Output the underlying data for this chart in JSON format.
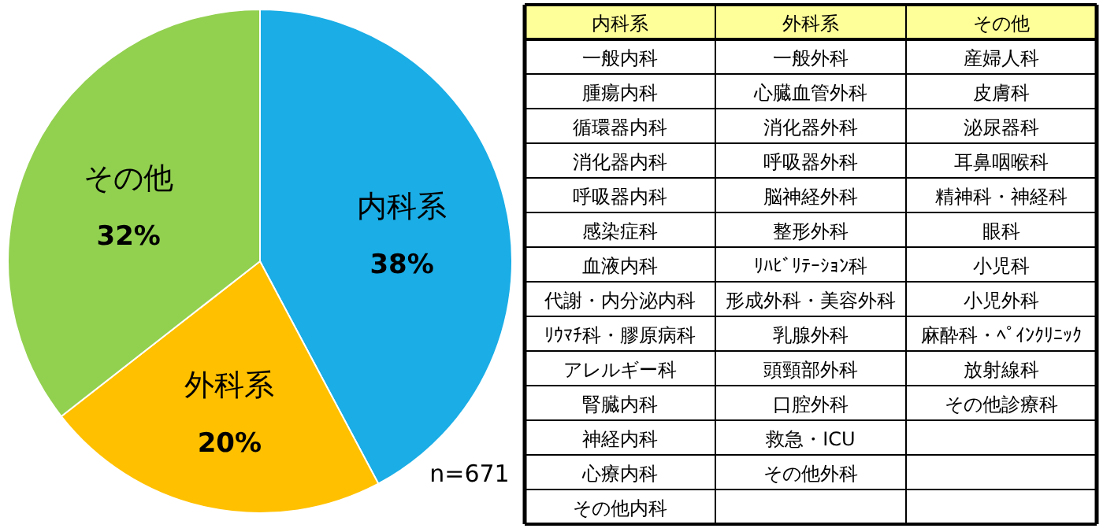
{
  "chart_data": [
    {
      "type": "pie",
      "categories": [
        "内科系",
        "外科系",
        "その他"
      ],
      "values": [
        38,
        20,
        32
      ],
      "colors": [
        "#1aade6",
        "#ffc000",
        "#92d050"
      ],
      "value_labels": [
        "38%",
        "20%",
        "32%"
      ],
      "annotations": [
        "n=671"
      ]
    },
    {
      "type": "other",
      "categories": [
        "内科系",
        "外科系",
        "その他"
      ],
      "cell_labels": [
        [
          "一般内科",
          "一般外科",
          "産婦人科"
        ],
        [
          "腫瘍内科",
          "心臓血管外科",
          "皮膚科"
        ],
        [
          "循環器内科",
          "消化器外科",
          "泌尿器科"
        ],
        [
          "消化器内科",
          "呼吸器外科",
          "耳鼻咽喉科"
        ],
        [
          "呼吸器内科",
          "脳神経外科",
          "精神科・神経科"
        ],
        [
          "感染症科",
          "整形外科",
          "眼科"
        ],
        [
          "血液内科",
          "ﾘﾊﾋﾞﾘﾃｰｼｮﾝ科",
          "小児科"
        ],
        [
          "代謝・内分泌内科",
          "形成外科・美容外科",
          "小児外科"
        ],
        [
          "ﾘｳﾏﾁ科・膠原病科",
          "乳腺外科",
          "麻酔科・ﾍﾟｲﾝｸﾘﾆｯｸ"
        ],
        [
          "アレルギー科",
          "頭頸部外科",
          "放射線科"
        ],
        [
          "腎臓内科",
          "口腔外科",
          "その他診療科"
        ],
        [
          "神経内科",
          "救急・ICU",
          null
        ],
        [
          "心療内科",
          "その他外科",
          null
        ],
        [
          "その他内科",
          null,
          null
        ]
      ]
    }
  ]
}
